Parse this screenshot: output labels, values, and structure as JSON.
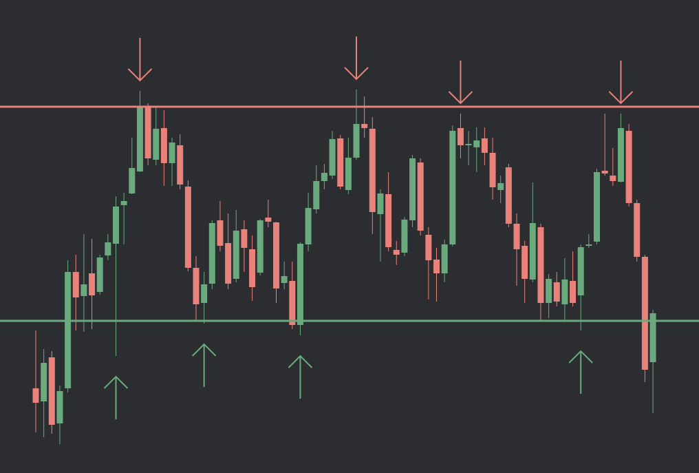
{
  "chart_data": {
    "type": "candlestick",
    "up_color": "#6aaa7e",
    "down_color": "#e8827a",
    "background": "#2c2d31",
    "ylim": [
      0,
      687
    ],
    "open": [
      123,
      104,
      168,
      72,
      123,
      292,
      257,
      290,
      263,
      316,
      333,
      389,
      406,
      438,
      532,
      455,
      501,
      450,
      476,
      416,
      298,
      247,
      275,
      367,
      334,
      282,
      354,
      325,
      291,
      371,
      364,
      276,
      279,
      215,
      332,
      383,
      424,
      432,
      486,
      411,
      458,
      507,
      500,
      376,
      405,
      324,
      320,
      367,
      451,
      346,
      310,
      290,
      332,
      501,
      476,
      473,
      486,
      465,
      411,
      444,
      362,
      330,
      281,
      357,
      247,
      277,
      245,
      279,
      258,
      330,
      336,
      439,
      432,
      423,
      497,
      392,
      314,
      161
    ],
    "high": [
      207,
      180,
      177,
      127,
      309,
      317,
      347,
      340,
      317,
      347,
      402,
      407,
      487,
      555,
      537,
      532,
      527,
      487,
      492,
      425,
      315,
      292,
      367,
      395,
      377,
      382,
      367,
      345,
      369,
      397,
      365,
      307,
      307,
      335,
      407,
      447,
      449,
      497,
      491,
      487,
      557,
      547,
      517,
      412,
      437,
      337,
      372,
      462,
      457,
      357,
      327,
      339,
      505,
      522,
      497,
      502,
      502,
      487,
      432,
      449,
      377,
      337,
      422,
      362,
      289,
      292,
      312,
      322,
      332,
      347,
      442,
      522,
      472,
      522,
      507,
      397,
      317,
      237
    ],
    "low": [
      59,
      52,
      57,
      42,
      117,
      207,
      205,
      209,
      259,
      309,
      170,
      332,
      405,
      437,
      447,
      447,
      417,
      417,
      412,
      293,
      222,
      217,
      267,
      322,
      267,
      277,
      292,
      250,
      287,
      357,
      247,
      267,
      209,
      200,
      322,
      377,
      412,
      427,
      412,
      405,
      455,
      487,
      347,
      307,
      322,
      302,
      315,
      357,
      345,
      252,
      249,
      277,
      329,
      457,
      447,
      437,
      447,
      397,
      392,
      357,
      272,
      247,
      277,
      222,
      225,
      242,
      222,
      242,
      207,
      327,
      332,
      432,
      417,
      422,
      387,
      307,
      132,
      87
    ],
    "close": [
      102,
      160,
      70,
      119,
      292,
      255,
      274,
      258,
      313,
      335,
      387,
      395,
      443,
      532,
      457,
      500,
      450,
      480,
      419,
      298,
      245,
      274,
      363,
      330,
      275,
      352,
      327,
      270,
      367,
      365,
      268,
      286,
      215,
      333,
      385,
      424,
      436,
      485,
      416,
      458,
      507,
      501,
      379,
      406,
      328,
      317,
      368,
      457,
      352,
      309,
      290,
      332,
      497,
      476,
      478,
      483,
      465,
      415,
      421,
      362,
      325,
      282,
      363,
      247,
      282,
      249,
      281,
      247,
      328,
      332,
      437,
      435,
      424,
      501,
      392,
      314,
      150,
      232
    ],
    "hlines": [
      {
        "value": 532,
        "color": "#e8827a"
      },
      {
        "value": 221,
        "color": "#6aaa7e"
      }
    ],
    "markers": [
      {
        "index": 13,
        "direction": "down"
      },
      {
        "index": 40,
        "direction": "down"
      },
      {
        "index": 53,
        "direction": "down"
      },
      {
        "index": 73,
        "direction": "down"
      },
      {
        "index": 10,
        "direction": "up"
      },
      {
        "index": 21,
        "direction": "up"
      },
      {
        "index": 33,
        "direction": "up"
      },
      {
        "index": 68,
        "direction": "up"
      }
    ]
  }
}
